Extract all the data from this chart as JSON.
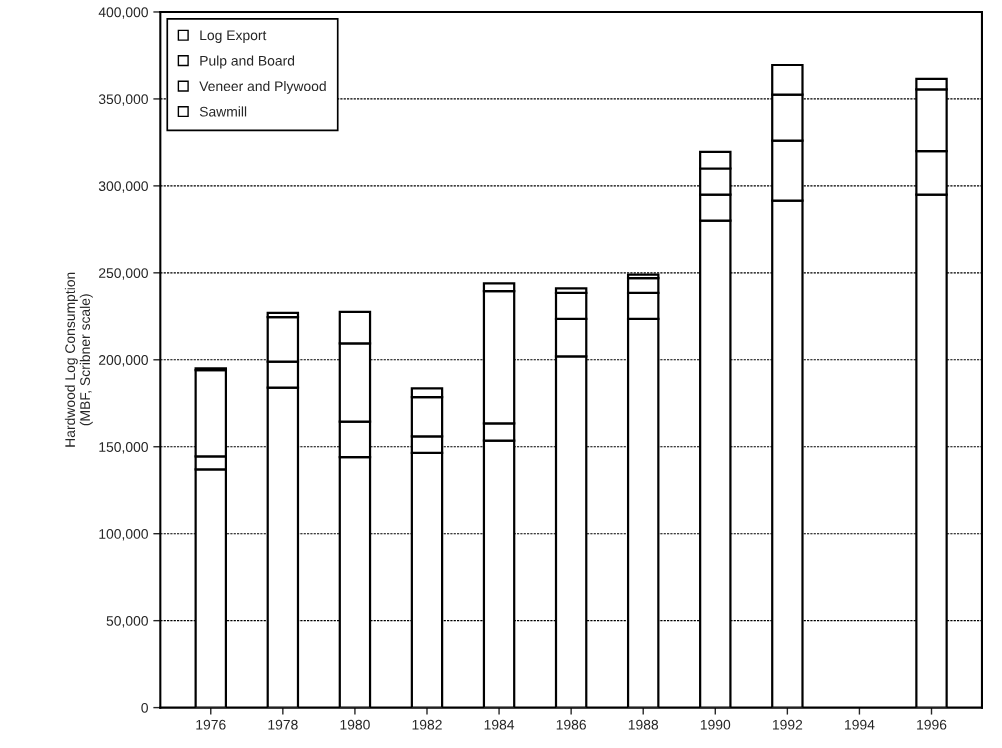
{
  "chart_data": {
    "type": "bar",
    "stacked": true,
    "ylabel": "Hardwood Log Consumption\n(MBF, Scribner scale)",
    "categories": [
      "1976",
      "1978",
      "1980",
      "1982",
      "1984",
      "1986",
      "1988",
      "1990",
      "1992",
      "1994",
      "1996"
    ],
    "series": [
      {
        "name": "Sawmill",
        "color": "#ffffff",
        "values": [
          137000,
          184000,
          144000,
          146500,
          153500,
          202000,
          223500,
          280000,
          291500,
          null,
          295000
        ]
      },
      {
        "name": "Veneer and Plywood",
        "color": "#ffffff",
        "values": [
          7500,
          15000,
          20500,
          9500,
          10000,
          21500,
          15000,
          15000,
          34500,
          null,
          25000
        ]
      },
      {
        "name": "Pulp and Board",
        "color": "#ffffff",
        "values": [
          49500,
          25500,
          45000,
          22500,
          76000,
          15000,
          8500,
          15000,
          26500,
          null,
          35500
        ]
      },
      {
        "name": "Log Export",
        "color": "#ffffff",
        "values": [
          1000,
          2500,
          18000,
          5000,
          4500,
          2500,
          2000,
          9500,
          17000,
          null,
          6000
        ]
      }
    ],
    "ylim": [
      0,
      400000
    ],
    "yticks": [
      {
        "value": 0,
        "label": "0"
      },
      {
        "value": 50000,
        "label": "50,000"
      },
      {
        "value": 100000,
        "label": "100,000"
      },
      {
        "value": 150000,
        "label": "150,000"
      },
      {
        "value": 200000,
        "label": "200,000"
      },
      {
        "value": 250000,
        "label": "250,000"
      },
      {
        "value": 300000,
        "label": "300,000"
      },
      {
        "value": 350000,
        "label": "350,000"
      },
      {
        "value": 400000,
        "label": "400,000"
      }
    ],
    "grid": "y",
    "legend": "top left"
  }
}
